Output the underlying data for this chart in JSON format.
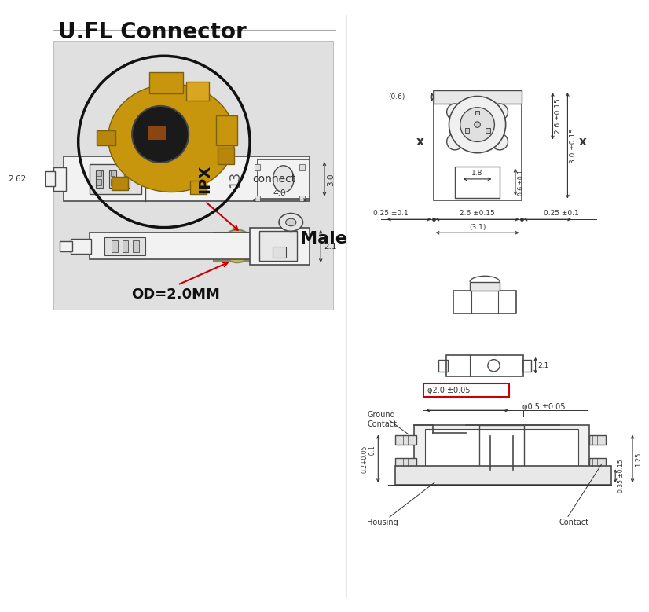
{
  "title": "U.FL Connector",
  "bg_color": "#ffffff",
  "line_color": "#4a4a4a",
  "dim_color": "#333333",
  "red_color": "#cc0000",
  "photo_bg": "#e8e8e8",
  "male_label": "Male",
  "od_label": "OD=2.0MM",
  "connect_label": "connect",
  "dims_top": {
    "val_06": "(0.6)",
    "val_26_015a": "2.6 ±0.15",
    "val_30_015": "3.0 ±0.15",
    "val_18": "1.8",
    "val_06_01": "0.6 ±0.1",
    "val_025_01_left": "0.25 ±0.1",
    "val_26_015b": "2.6 ±0.15",
    "val_025_01_right": "0.25 ±0.1",
    "val_31": "(3.1)"
  },
  "dims_bottom_left": {
    "val_262": "2.62",
    "val_30": "3.0",
    "val_40": "4.0",
    "val_21": "2.1",
    "label_ipx": "IPX",
    "label_13": "13"
  },
  "dims_bottom_right": {
    "phi_label": "φ2.0 ±0.05",
    "ground_label": "Ground\nContact",
    "phi2_label": "φ0.5 ±0.05",
    "val_02_005": "0.2+0.05\n-0.1",
    "val_035_015": "0.35 ±0.15",
    "val_125": "1.25",
    "housing_label": "Housing",
    "contact_label": "Contact"
  }
}
